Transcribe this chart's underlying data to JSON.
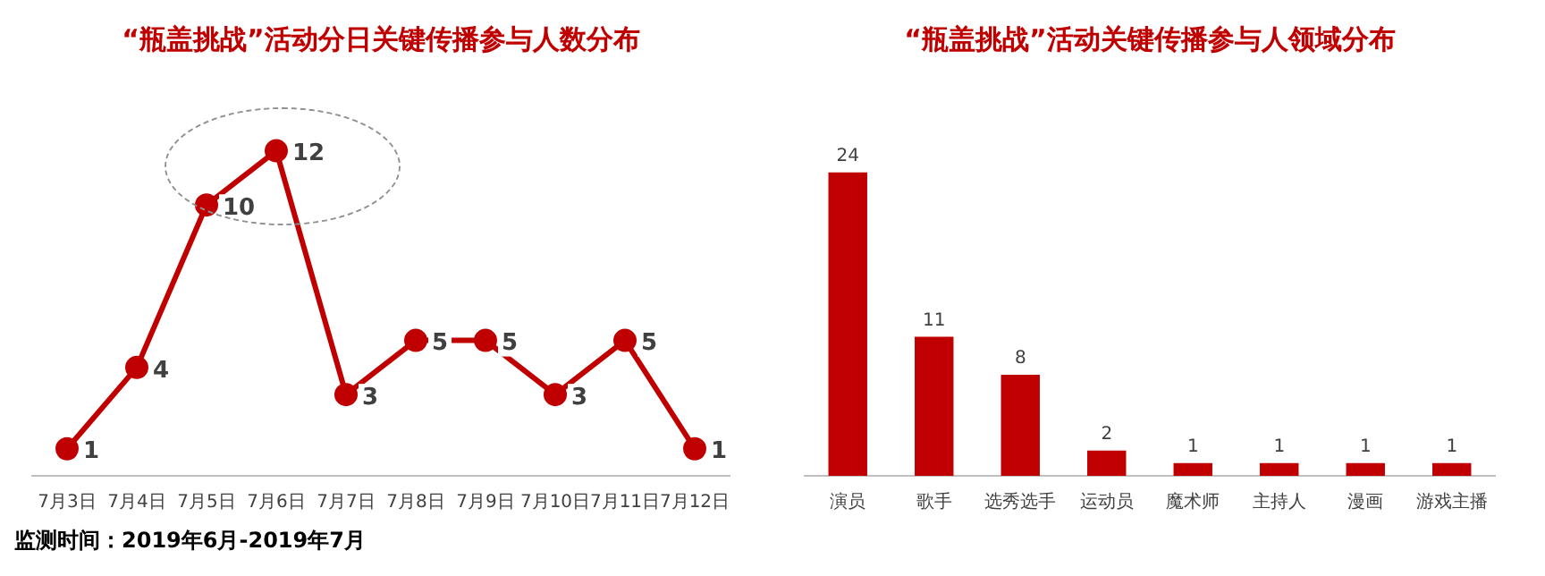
{
  "chart_data": [
    {
      "type": "line",
      "title": "“瓶盖挑战”活动分日关键传播参与人数分布",
      "categories": [
        "7月3日",
        "7月4日",
        "7月5日",
        "7月6日",
        "7月7日",
        "7月8日",
        "7月9日",
        "7月10日",
        "7月11日",
        "7月12日"
      ],
      "series": [
        {
          "color": "#c00000",
          "values": [
            1,
            4,
            10,
            12,
            3,
            5,
            5,
            3,
            5,
            1
          ]
        }
      ],
      "data_labels": true,
      "marker": "circle",
      "line_style": "solid",
      "grid": false,
      "legend": false,
      "tick_labels": "x",
      "annotations": [
        "监测时间：2019年6月-2019年7月"
      ]
    },
    {
      "type": "bar",
      "title": "“瓶盖挑战”活动关键传播参与人领域分布",
      "categories": [
        "演员",
        "歌手",
        "选秀选手",
        "运动员",
        "魔术师",
        "主持人",
        "漫画",
        "游戏主播"
      ],
      "series": [
        {
          "color": "#c00000",
          "values": [
            24,
            11,
            8,
            2,
            1,
            1,
            1,
            1
          ]
        }
      ],
      "data_labels": true,
      "grid": false,
      "legend": false,
      "tick_labels": "x"
    }
  ]
}
